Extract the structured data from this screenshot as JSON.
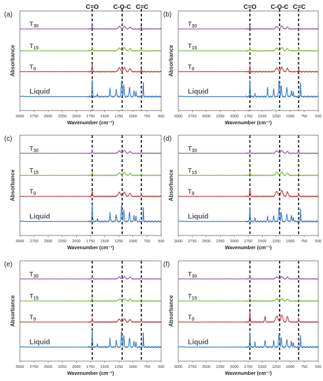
{
  "figure": {
    "x_ticks": [
      3000,
      2750,
      2500,
      2250,
      2000,
      1750,
      1500,
      1250,
      1000,
      750,
      500
    ],
    "band_label_co": "C=O",
    "band_label_coc": "C-O-C",
    "band_label_cc": "C=C",
    "x_label": "Wavenumber (cm⁻¹)",
    "y_label": "Absorbance"
  },
  "chart_data": [
    {
      "type": "line",
      "panel": "(a)",
      "xlabel": "Wavenumber (cm⁻¹)",
      "ylabel": "Absorbance",
      "xlim": [
        3000,
        500
      ],
      "x_reversed": true,
      "grid": false,
      "ticks": [
        3000,
        2750,
        2500,
        2250,
        2000,
        1750,
        1500,
        1250,
        1000,
        750,
        500
      ],
      "band_lines": [
        1720,
        1190,
        850
      ],
      "band_labels": true,
      "series": [
        {
          "label_main": "T",
          "label_sub": "30",
          "color": "#8e5fb0",
          "peaks": [
            [
              1720,
              0.35,
              9
            ],
            [
              1240,
              0.25,
              30
            ],
            [
              1150,
              0.3,
              25
            ],
            [
              1050,
              0.2,
              20
            ],
            [
              850,
              0.2,
              8
            ]
          ]
        },
        {
          "label_main": "T",
          "label_sub": "15",
          "color": "#82b53c",
          "peaks": [
            [
              1720,
              0.4,
              9
            ],
            [
              1240,
              0.3,
              30
            ],
            [
              1150,
              0.35,
              25
            ],
            [
              1050,
              0.25,
              20
            ],
            [
              850,
              0.2,
              8
            ]
          ]
        },
        {
          "label_main": "T",
          "label_sub": "0",
          "color": "#c03b3b",
          "peaks": [
            [
              1720,
              0.65,
              9
            ],
            [
              1240,
              0.35,
              30
            ],
            [
              1150,
              0.4,
              25
            ],
            [
              1050,
              0.3,
              20
            ],
            [
              850,
              0.25,
              8
            ]
          ]
        },
        {
          "label_main": "Liquid",
          "label_sub": "",
          "color": "#3f7fc4",
          "peaks": [
            [
              1720,
              1.0,
              8
            ],
            [
              1630,
              0.2,
              7
            ],
            [
              1405,
              0.55,
              8
            ],
            [
              1295,
              0.45,
              10
            ],
            [
              1200,
              0.95,
              12
            ],
            [
              1160,
              0.7,
              10
            ],
            [
              1060,
              0.55,
              12
            ],
            [
              980,
              0.35,
              10
            ],
            [
              945,
              0.3,
              8
            ],
            [
              815,
              0.9,
              6
            ]
          ]
        }
      ]
    },
    {
      "type": "line",
      "panel": "(b)",
      "xlabel": "Wavenumber (cm⁻¹)",
      "ylabel": "Absorbance",
      "xlim": [
        3000,
        500
      ],
      "x_reversed": true,
      "grid": false,
      "ticks": [
        3000,
        2750,
        2500,
        2250,
        2000,
        1750,
        1500,
        1250,
        1000,
        750,
        500
      ],
      "band_lines": [
        1720,
        1190,
        850
      ],
      "band_labels": true,
      "series": [
        {
          "label_main": "T",
          "label_sub": "30",
          "color": "#8e5fb0",
          "peaks": [
            [
              1720,
              0.3,
              9
            ],
            [
              1240,
              0.25,
              30
            ],
            [
              1150,
              0.3,
              25
            ],
            [
              1050,
              0.2,
              20
            ],
            [
              850,
              0.15,
              8
            ]
          ]
        },
        {
          "label_main": "T",
          "label_sub": "15",
          "color": "#82b53c",
          "peaks": [
            [
              1720,
              0.35,
              9
            ],
            [
              1240,
              0.3,
              30
            ],
            [
              1150,
              0.35,
              25
            ],
            [
              1050,
              0.25,
              20
            ],
            [
              850,
              0.2,
              8
            ]
          ]
        },
        {
          "label_main": "T",
          "label_sub": "0",
          "color": "#c03b3b",
          "peaks": [
            [
              1720,
              0.55,
              9
            ],
            [
              1240,
              0.35,
              30
            ],
            [
              1150,
              0.4,
              25
            ],
            [
              1050,
              0.3,
              20
            ],
            [
              850,
              0.25,
              8
            ]
          ]
        },
        {
          "label_main": "Liquid",
          "label_sub": "",
          "color": "#3f7fc4",
          "peaks": [
            [
              1720,
              1.0,
              8
            ],
            [
              1630,
              0.2,
              7
            ],
            [
              1405,
              0.55,
              8
            ],
            [
              1295,
              0.45,
              10
            ],
            [
              1200,
              0.95,
              12
            ],
            [
              1160,
              0.7,
              10
            ],
            [
              1060,
              0.55,
              12
            ],
            [
              980,
              0.35,
              10
            ],
            [
              945,
              0.3,
              8
            ],
            [
              815,
              0.9,
              6
            ]
          ]
        }
      ]
    },
    {
      "type": "line",
      "panel": "(c)",
      "xlabel": "Wavenumber (cm⁻¹)",
      "ylabel": "Absorbance",
      "xlim": [
        3000,
        500
      ],
      "x_reversed": true,
      "grid": false,
      "ticks": [
        3000,
        2750,
        2500,
        2250,
        2000,
        1750,
        1500,
        1250,
        1000,
        750,
        500
      ],
      "band_lines": [
        1720,
        1190,
        850
      ],
      "band_labels": false,
      "series": [
        {
          "label_main": "T",
          "label_sub": "30",
          "color": "#8e5fb0",
          "peaks": [
            [
              1720,
              0.3,
              9
            ],
            [
              1240,
              0.25,
              30
            ],
            [
              1150,
              0.3,
              25
            ],
            [
              1050,
              0.2,
              20
            ],
            [
              850,
              0.15,
              8
            ]
          ]
        },
        {
          "label_main": "T",
          "label_sub": "15",
          "color": "#82b53c",
          "peaks": [
            [
              1720,
              0.3,
              9
            ],
            [
              1240,
              0.25,
              30
            ],
            [
              1150,
              0.3,
              25
            ],
            [
              1050,
              0.2,
              20
            ],
            [
              850,
              0.15,
              8
            ]
          ]
        },
        {
          "label_main": "T",
          "label_sub": "0",
          "color": "#c03b3b",
          "peaks": [
            [
              1720,
              0.5,
              9
            ],
            [
              1240,
              0.35,
              30
            ],
            [
              1150,
              0.4,
              25
            ],
            [
              1050,
              0.3,
              20
            ],
            [
              850,
              0.25,
              8
            ]
          ]
        },
        {
          "label_main": "Liquid",
          "label_sub": "",
          "color": "#3f7fc4",
          "peaks": [
            [
              1720,
              1.0,
              8
            ],
            [
              1630,
              0.2,
              7
            ],
            [
              1405,
              0.55,
              8
            ],
            [
              1295,
              0.45,
              10
            ],
            [
              1200,
              0.95,
              12
            ],
            [
              1160,
              0.7,
              10
            ],
            [
              1060,
              0.55,
              12
            ],
            [
              980,
              0.35,
              10
            ],
            [
              945,
              0.3,
              8
            ],
            [
              815,
              0.9,
              6
            ]
          ]
        }
      ]
    },
    {
      "type": "line",
      "panel": "(d)",
      "xlabel": "Wavenumber (cm⁻¹)",
      "ylabel": "Absorbance",
      "xlim": [
        3000,
        500
      ],
      "x_reversed": true,
      "grid": false,
      "ticks": [
        3000,
        2750,
        2500,
        2250,
        2000,
        1750,
        1500,
        1250,
        1000,
        750,
        500
      ],
      "band_lines": [
        1720,
        1190,
        850
      ],
      "band_labels": false,
      "series": [
        {
          "label_main": "T",
          "label_sub": "30",
          "color": "#8e5fb0",
          "peaks": [
            [
              1720,
              0.3,
              9
            ],
            [
              1240,
              0.25,
              30
            ],
            [
              1150,
              0.3,
              25
            ],
            [
              1050,
              0.2,
              20
            ],
            [
              850,
              0.15,
              8
            ]
          ]
        },
        {
          "label_main": "T",
          "label_sub": "15",
          "color": "#82b53c",
          "peaks": [
            [
              1720,
              0.35,
              9
            ],
            [
              1240,
              0.3,
              30
            ],
            [
              1150,
              0.35,
              25
            ],
            [
              1050,
              0.25,
              20
            ],
            [
              850,
              0.2,
              8
            ]
          ]
        },
        {
          "label_main": "T",
          "label_sub": "0",
          "color": "#c03b3b",
          "peaks": [
            [
              1720,
              0.7,
              9
            ],
            [
              1240,
              0.45,
              30
            ],
            [
              1150,
              0.55,
              25
            ],
            [
              1050,
              0.4,
              20
            ],
            [
              850,
              0.3,
              8
            ]
          ]
        },
        {
          "label_main": "Liquid",
          "label_sub": "",
          "color": "#3f7fc4",
          "peaks": [
            [
              1720,
              0.9,
              8
            ],
            [
              1630,
              0.2,
              7
            ],
            [
              1405,
              0.3,
              8
            ],
            [
              1295,
              0.35,
              10
            ],
            [
              1200,
              0.8,
              12
            ],
            [
              1160,
              0.6,
              10
            ],
            [
              1060,
              0.45,
              12
            ],
            [
              980,
              0.35,
              10
            ],
            [
              945,
              0.25,
              8
            ],
            [
              815,
              0.8,
              6
            ]
          ]
        }
      ]
    },
    {
      "type": "line",
      "panel": "(e)",
      "xlabel": "Wavenumber (cm⁻¹)",
      "ylabel": "Absorbance",
      "xlim": [
        3000,
        500
      ],
      "x_reversed": true,
      "grid": false,
      "ticks": [
        3000,
        2750,
        2500,
        2250,
        2000,
        1750,
        1500,
        1250,
        1000,
        750,
        500
      ],
      "band_lines": [
        1720,
        1190,
        850
      ],
      "band_labels": false,
      "series": [
        {
          "label_main": "T",
          "label_sub": "30",
          "color": "#8e5fb0",
          "peaks": [
            [
              1720,
              0.25,
              9
            ],
            [
              1240,
              0.2,
              30
            ],
            [
              1150,
              0.25,
              25
            ],
            [
              1050,
              0.2,
              20
            ],
            [
              850,
              0.15,
              8
            ]
          ]
        },
        {
          "label_main": "T",
          "label_sub": "15",
          "color": "#82b53c",
          "peaks": [
            [
              1720,
              0.25,
              9
            ],
            [
              1240,
              0.2,
              30
            ],
            [
              1150,
              0.25,
              25
            ],
            [
              1050,
              0.2,
              20
            ],
            [
              850,
              0.15,
              8
            ]
          ]
        },
        {
          "label_main": "T",
          "label_sub": "0",
          "color": "#c03b3b",
          "peaks": [
            [
              1720,
              0.35,
              9
            ],
            [
              1240,
              0.25,
              30
            ],
            [
              1150,
              0.3,
              25
            ],
            [
              1050,
              0.25,
              20
            ],
            [
              850,
              0.2,
              8
            ]
          ]
        },
        {
          "label_main": "Liquid",
          "label_sub": "",
          "color": "#3f7fc4",
          "peaks": [
            [
              1720,
              1.0,
              8
            ],
            [
              1630,
              0.2,
              7
            ],
            [
              1405,
              0.55,
              8
            ],
            [
              1295,
              0.45,
              10
            ],
            [
              1200,
              0.95,
              12
            ],
            [
              1160,
              0.7,
              10
            ],
            [
              1060,
              0.55,
              12
            ],
            [
              980,
              0.35,
              10
            ],
            [
              945,
              0.3,
              8
            ],
            [
              815,
              0.9,
              6
            ]
          ]
        }
      ]
    },
    {
      "type": "line",
      "panel": "(f)",
      "xlabel": "Wavenumber (cm⁻¹)",
      "ylabel": "Absorbance",
      "xlim": [
        3000,
        500
      ],
      "x_reversed": true,
      "grid": false,
      "ticks": [
        3000,
        2750,
        2500,
        2250,
        2000,
        1750,
        1500,
        1250,
        1000,
        750,
        500
      ],
      "band_lines": [
        1720,
        1190,
        850
      ],
      "band_labels": false,
      "series": [
        {
          "label_main": "T",
          "label_sub": "30",
          "color": "#8e5fb0",
          "peaks": [
            [
              1720,
              0.3,
              9
            ],
            [
              1240,
              0.2,
              30
            ],
            [
              1150,
              0.25,
              25
            ],
            [
              1050,
              0.2,
              20
            ],
            [
              850,
              0.15,
              8
            ]
          ]
        },
        {
          "label_main": "T",
          "label_sub": "15",
          "color": "#82b53c",
          "peaks": [
            [
              1720,
              0.3,
              9
            ],
            [
              1240,
              0.2,
              30
            ],
            [
              1150,
              0.25,
              25
            ],
            [
              1050,
              0.2,
              20
            ],
            [
              850,
              0.15,
              8
            ]
          ]
        },
        {
          "label_main": "T",
          "label_sub": "0",
          "color": "#c03b3b",
          "peaks": [
            [
              1720,
              0.9,
              9
            ],
            [
              1450,
              0.5,
              12
            ],
            [
              1240,
              0.55,
              30
            ],
            [
              1150,
              0.65,
              25
            ],
            [
              1050,
              0.5,
              20
            ],
            [
              850,
              0.35,
              8
            ]
          ]
        },
        {
          "label_main": "Liquid",
          "label_sub": "",
          "color": "#3f7fc4",
          "peaks": [
            [
              1720,
              0.9,
              8
            ],
            [
              1630,
              0.3,
              7
            ],
            [
              1450,
              0.45,
              10
            ],
            [
              1295,
              0.4,
              10
            ],
            [
              1200,
              0.75,
              12
            ],
            [
              1160,
              0.6,
              10
            ],
            [
              1060,
              0.5,
              12
            ],
            [
              980,
              0.35,
              10
            ],
            [
              945,
              0.3,
              8
            ],
            [
              815,
              0.7,
              6
            ]
          ]
        }
      ]
    }
  ]
}
